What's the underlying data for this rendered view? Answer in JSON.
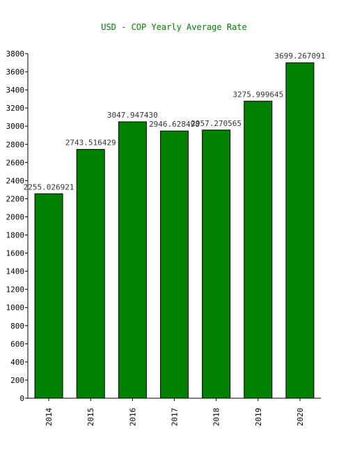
{
  "chart_data": {
    "type": "bar",
    "title": "USD - COP Yearly Average Rate",
    "xlabel": "",
    "ylabel": "",
    "categories": [
      "2014",
      "2015",
      "2016",
      "2017",
      "2018",
      "2019",
      "2020"
    ],
    "values": [
      2255.026921,
      2743.516429,
      3047.94743,
      2946.628498,
      2957.270565,
      3275.999645,
      3699.267091
    ],
    "data_labels": [
      "2255.026921",
      "2743.516429",
      "3047.947430",
      "2946.628498",
      "2957.270565",
      "3275.999645",
      "3699.267091"
    ],
    "ylim": [
      0,
      3800
    ],
    "yticks": [
      0,
      200,
      400,
      600,
      800,
      1000,
      1200,
      1400,
      1600,
      1800,
      2000,
      2200,
      2400,
      2600,
      2800,
      3000,
      3200,
      3400,
      3600,
      3800
    ],
    "grid": false,
    "legend": "none",
    "colors": {
      "bar": "#008000",
      "title": "#008000",
      "labels": "#333333",
      "axis": "#000000"
    }
  }
}
